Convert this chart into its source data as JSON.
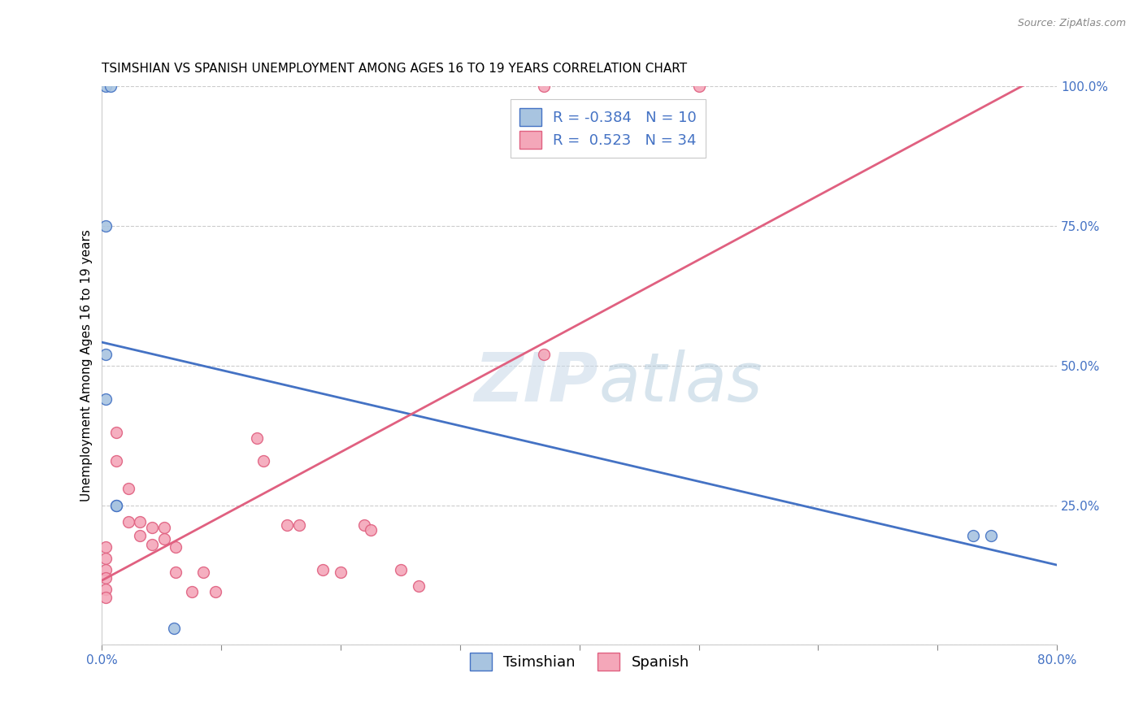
{
  "title": "TSIMSHIAN VS SPANISH UNEMPLOYMENT AMONG AGES 16 TO 19 YEARS CORRELATION CHART",
  "source": "Source: ZipAtlas.com",
  "ylabel": "Unemployment Among Ages 16 to 19 years",
  "xlim": [
    0.0,
    0.8
  ],
  "ylim": [
    0.0,
    1.0
  ],
  "xticks": [
    0.0,
    0.1,
    0.2,
    0.3,
    0.4,
    0.5,
    0.6,
    0.7,
    0.8
  ],
  "xticklabels": [
    "0.0%",
    "",
    "",
    "",
    "",
    "",
    "",
    "",
    "80.0%"
  ],
  "yticks": [
    0.0,
    0.25,
    0.5,
    0.75,
    1.0
  ],
  "yticklabels": [
    "",
    "25.0%",
    "50.0%",
    "75.0%",
    "100.0%"
  ],
  "group1_name": "Tsimshian",
  "group1_color": "#a8c4e0",
  "group1_line_color": "#4472c4",
  "group1_R": -0.384,
  "group1_N": 10,
  "group1_x": [
    0.003,
    0.007,
    0.003,
    0.003,
    0.003,
    0.012,
    0.012,
    0.73,
    0.745,
    0.06
  ],
  "group1_y": [
    1.0,
    1.0,
    0.75,
    0.52,
    0.44,
    0.25,
    0.25,
    0.195,
    0.195,
    0.03
  ],
  "group2_name": "Spanish",
  "group2_color": "#f4a7b9",
  "group2_line_color": "#e06080",
  "group2_R": 0.523,
  "group2_N": 34,
  "group2_x": [
    0.003,
    0.003,
    0.003,
    0.003,
    0.003,
    0.003,
    0.012,
    0.012,
    0.022,
    0.022,
    0.032,
    0.032,
    0.042,
    0.042,
    0.052,
    0.052,
    0.062,
    0.062,
    0.075,
    0.085,
    0.095,
    0.13,
    0.135,
    0.155,
    0.165,
    0.185,
    0.2,
    0.22,
    0.225,
    0.25,
    0.265,
    0.37,
    0.37,
    0.5
  ],
  "group2_y": [
    0.175,
    0.155,
    0.135,
    0.12,
    0.1,
    0.085,
    0.38,
    0.33,
    0.28,
    0.22,
    0.22,
    0.195,
    0.21,
    0.18,
    0.21,
    0.19,
    0.175,
    0.13,
    0.095,
    0.13,
    0.095,
    0.37,
    0.33,
    0.215,
    0.215,
    0.135,
    0.13,
    0.215,
    0.205,
    0.135,
    0.105,
    0.52,
    1.0,
    1.0
  ],
  "watermark_zip": "ZIP",
  "watermark_atlas": "atlas",
  "background_color": "#ffffff",
  "grid_color": "#cccccc",
  "title_fontsize": 11,
  "axis_label_fontsize": 11,
  "tick_fontsize": 11,
  "legend_fontsize": 13,
  "marker_size": 10,
  "line_width": 2.0
}
